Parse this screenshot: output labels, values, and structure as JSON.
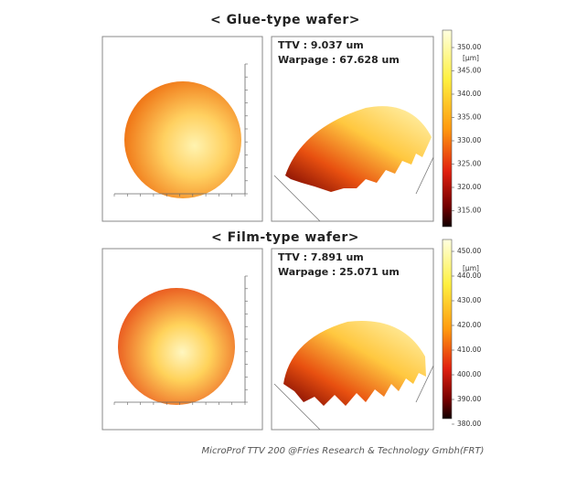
{
  "panels": [
    {
      "title": "< Glue-type wafer>",
      "ttv": "TTV : 9.037 um",
      "warpage": "Warpage : 67.628 um",
      "colorbar": {
        "unit": "[µm]",
        "ticks": [
          "350.00",
          "345.00",
          "340.00",
          "335.00",
          "330.00",
          "325.00",
          "320.00",
          "315.00"
        ]
      }
    },
    {
      "title": "< Film-type wafer>",
      "ttv": "TTV : 7.891 um",
      "warpage": "Warpage : 25.071 um",
      "colorbar": {
        "unit": "[µm]",
        "ticks": [
          "450.00",
          "440.00",
          "430.00",
          "420.00",
          "410.00",
          "400.00",
          "390.00",
          "380.00"
        ]
      }
    }
  ],
  "caption": "MicroProf TTV 200 @Fries Research & Technology Gmbh(FRT)"
}
